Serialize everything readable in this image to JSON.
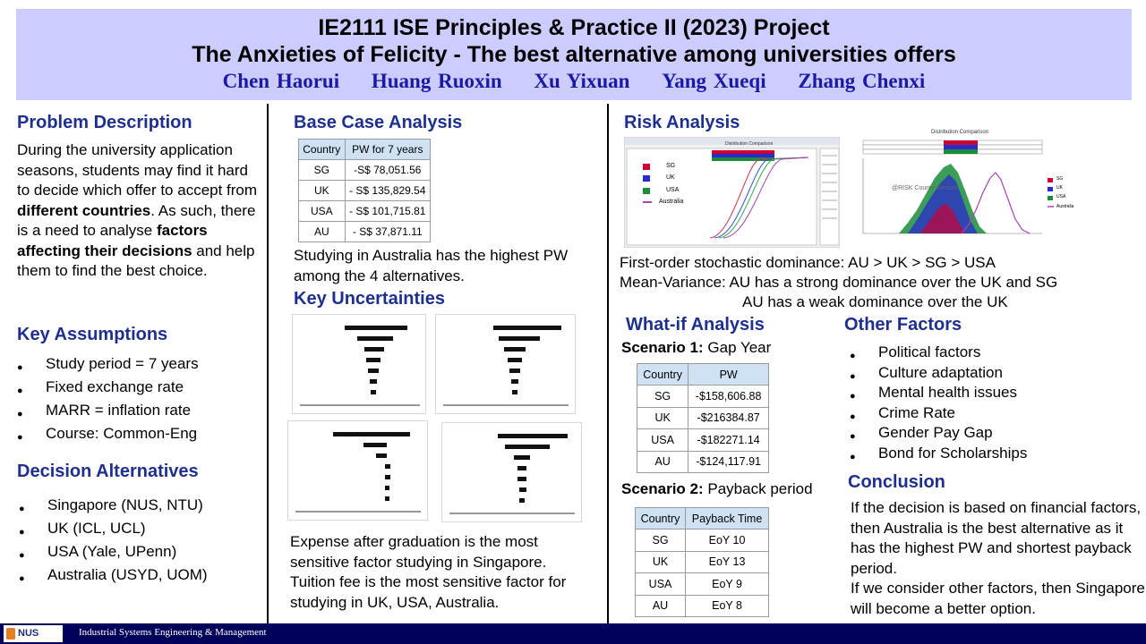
{
  "header": {
    "title_line1": "IE2111 ISE Principles & Practice II (2023) Project",
    "title_line2": "The Anxieties of Felicity - The best alternative among universities offers",
    "authors": [
      "Chen Haorui",
      "Huang Ruoxin",
      "Xu Yixuan",
      "Yang Xueqi",
      "Zhang Chenxi"
    ]
  },
  "problem": {
    "heading": "Problem Description",
    "text_before": "During the university application seasons, students may find it hard to decide which offer to accept from ",
    "bold1": "different countries",
    "text_mid": ". As such, there is a need to analyse ",
    "bold2": "factors affecting their decisions",
    "text_after": " and help them to find the best choice."
  },
  "assumptions": {
    "heading": "Key Assumptions",
    "items": [
      "Study period = 7 years",
      "Fixed exchange rate",
      "MARR = inflation rate",
      "Course: Common-Eng"
    ]
  },
  "alternatives": {
    "heading": "Decision Alternatives",
    "items": [
      "Singapore (NUS, NTU)",
      "UK (ICL, UCL)",
      "USA (Yale, UPenn)",
      "Australia (USYD, UOM)"
    ]
  },
  "base_case": {
    "heading": "Base Case Analysis",
    "headers": [
      "Country",
      "PW for 7 years"
    ],
    "rows": [
      [
        "SG",
        "-S$ 78,051.56"
      ],
      [
        "UK",
        "- S$ 135,829.54"
      ],
      [
        "USA",
        "- S$ 101,715.81"
      ],
      [
        "AU",
        "- S$ 37,871.11"
      ]
    ],
    "note": "Studying in Australia has the highest PW among the 4 alternatives."
  },
  "uncertainties": {
    "heading": "Key Uncertainties",
    "note": "Expense after graduation is the most sensitive factor studying in Singapore. Tuition fee is the most sensitive factor for studying in UK, USA, Australia."
  },
  "risk": {
    "heading": "Risk Analysis",
    "chart_title": "Distribution Comparison",
    "legend": [
      "SG",
      "UK",
      "USA",
      "Australia"
    ],
    "watermark": "@RISK Course Version",
    "line1": "First-order stochastic dominance: AU > UK > SG > USA",
    "line2": "Mean-Variance: AU has a strong dominance over the UK and SG",
    "line3": "AU has a weak dominance over the UK"
  },
  "whatif": {
    "heading": "What-if Analysis",
    "s1_label": "Scenario 1:",
    "s1_name": "Gap Year",
    "s1_headers": [
      "Country",
      "PW"
    ],
    "s1_rows": [
      [
        "SG",
        "-$158,606.88"
      ],
      [
        "UK",
        "-$216384.87"
      ],
      [
        "USA",
        "-$182271.14"
      ],
      [
        "AU",
        "-$124,117.91"
      ]
    ],
    "s2_label": "Scenario 2:",
    "s2_name": "Payback period",
    "s2_headers": [
      "Country",
      "Payback Time"
    ],
    "s2_rows": [
      [
        "SG",
        "EoY 10"
      ],
      [
        "UK",
        "EoY 13"
      ],
      [
        "USA",
        "EoY 9"
      ],
      [
        "AU",
        "EoY 8"
      ]
    ]
  },
  "other": {
    "heading": "Other Factors",
    "items": [
      "Political factors",
      "Culture adaptation",
      "Mental health issues",
      "Crime Rate",
      "Gender Pay Gap",
      "Bond for Scholarships"
    ]
  },
  "conclusion": {
    "heading": "Conclusion",
    "p1": "If the decision is based on financial factors, then Australia is the best alternative as it has the highest PW and shortest payback period.",
    "p2": "If we consider other factors, then Singapore will become a better option."
  },
  "footer": {
    "logo": "NUS",
    "institution": "Industrial Systems Engineering & Management"
  },
  "colors": {
    "header_bg": "#ccccff",
    "heading": "#1f2f8f",
    "authors": "#1a1aa6",
    "table_header": "#cfe2f3",
    "footer": "#00005a"
  }
}
